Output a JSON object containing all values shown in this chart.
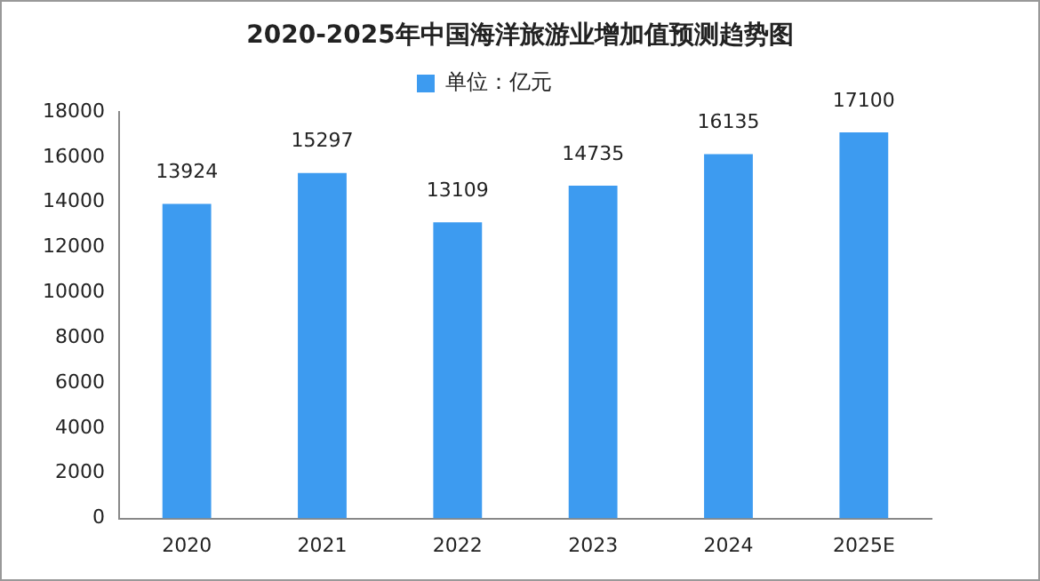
{
  "chart_data": {
    "type": "bar",
    "title": "2020-2025年中国海洋旅游业增加值预测趋势图",
    "categories": [
      "2020",
      "2021",
      "2022",
      "2023",
      "2024",
      "2025E"
    ],
    "series": [
      {
        "name": "单位：亿元",
        "color": "#3d9bf0",
        "values": [
          13924,
          15297,
          13109,
          14735,
          16135,
          17100
        ]
      }
    ],
    "ylim": [
      0,
      18000
    ],
    "yticks": [
      0,
      2000,
      4000,
      6000,
      8000,
      10000,
      12000,
      14000,
      16000,
      18000
    ],
    "grid": false,
    "legend": "top",
    "data_labels": true
  }
}
